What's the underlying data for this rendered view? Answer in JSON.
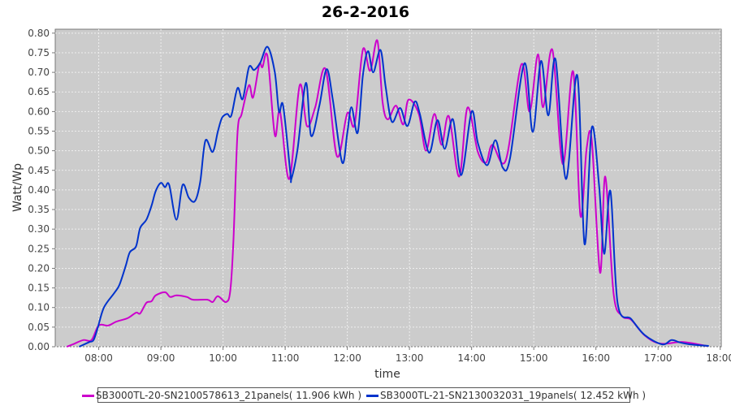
{
  "chart_data": {
    "type": "line",
    "title": "26-2-2016",
    "xlabel": "time",
    "ylabel": "Watt/Wp",
    "xlim": [
      "07:18",
      "18:01"
    ],
    "ylim": [
      0,
      0.81
    ],
    "x_ticks": [
      "08:00",
      "09:00",
      "10:00",
      "11:00",
      "12:00",
      "13:00",
      "14:00",
      "15:00",
      "16:00",
      "17:00",
      "18:00"
    ],
    "y_ticks": [
      "0.00",
      "0.05",
      "0.10",
      "0.15",
      "0.20",
      "0.25",
      "0.30",
      "0.35",
      "0.40",
      "0.45",
      "0.50",
      "0.55",
      "0.60",
      "0.65",
      "0.70",
      "0.75",
      "0.80"
    ],
    "grid": true,
    "legend_position": "bottom",
    "background": "#cccccc",
    "series": [
      {
        "name": "SB3000TL-20-SN2100578613_21panels( 11.906 kWh )",
        "color": "#cc00cc",
        "points": [
          [
            "07:29",
            0
          ],
          [
            "07:35",
            0.006
          ],
          [
            "07:45",
            0.017
          ],
          [
            "07:53",
            0.017
          ],
          [
            "08:00",
            0.054
          ],
          [
            "08:09",
            0.054
          ],
          [
            "08:17",
            0.064
          ],
          [
            "08:28",
            0.073
          ],
          [
            "08:36",
            0.087
          ],
          [
            "08:40",
            0.085
          ],
          [
            "08:46",
            0.112
          ],
          [
            "08:51",
            0.116
          ],
          [
            "08:55",
            0.131
          ],
          [
            "09:04",
            0.139
          ],
          [
            "09:09",
            0.127
          ],
          [
            "09:15",
            0.131
          ],
          [
            "09:25",
            0.127
          ],
          [
            "09:31",
            0.12
          ],
          [
            "09:45",
            0.12
          ],
          [
            "09:50",
            0.114
          ],
          [
            "09:55",
            0.129
          ],
          [
            "10:03",
            0.114
          ],
          [
            "10:07",
            0.143
          ],
          [
            "10:10",
            0.268
          ],
          [
            "10:14",
            0.546
          ],
          [
            "10:18",
            0.594
          ],
          [
            "10:25",
            0.667
          ],
          [
            "10:29",
            0.636
          ],
          [
            "10:35",
            0.72
          ],
          [
            "10:38",
            0.713
          ],
          [
            "10:43",
            0.74
          ],
          [
            "10:50",
            0.54
          ],
          [
            "10:55",
            0.6
          ],
          [
            "11:04",
            0.428
          ],
          [
            "11:14",
            0.667
          ],
          [
            "11:21",
            0.563
          ],
          [
            "11:29",
            0.611
          ],
          [
            "11:39",
            0.708
          ],
          [
            "11:50",
            0.486
          ],
          [
            "12:00",
            0.596
          ],
          [
            "12:07",
            0.567
          ],
          [
            "12:15",
            0.758
          ],
          [
            "12:22",
            0.704
          ],
          [
            "12:29",
            0.781
          ],
          [
            "12:34",
            0.625
          ],
          [
            "12:39",
            0.58
          ],
          [
            "12:47",
            0.615
          ],
          [
            "12:54",
            0.567
          ],
          [
            "12:59",
            0.63
          ],
          [
            "13:09",
            0.594
          ],
          [
            "13:16",
            0.5
          ],
          [
            "13:24",
            0.594
          ],
          [
            "13:31",
            0.515
          ],
          [
            "13:38",
            0.588
          ],
          [
            "13:48",
            0.434
          ],
          [
            "13:56",
            0.61
          ],
          [
            "14:06",
            0.497
          ],
          [
            "14:14",
            0.47
          ],
          [
            "14:20",
            0.515
          ],
          [
            "14:33",
            0.476
          ],
          [
            "14:48",
            0.72
          ],
          [
            "14:56",
            0.6
          ],
          [
            "15:04",
            0.746
          ],
          [
            "15:09",
            0.611
          ],
          [
            "15:18",
            0.757
          ],
          [
            "15:28",
            0.466
          ],
          [
            "15:38",
            0.702
          ],
          [
            "15:45",
            0.335
          ],
          [
            "15:51",
            0.505
          ],
          [
            "15:56",
            0.526
          ],
          [
            "16:04",
            0.189
          ],
          [
            "16:09",
            0.434
          ],
          [
            "16:17",
            0.137
          ],
          [
            "16:25",
            0.079
          ],
          [
            "16:34",
            0.069
          ],
          [
            "16:47",
            0.029
          ],
          [
            "17:02",
            0.008
          ],
          [
            "17:24",
            0.012
          ],
          [
            "17:47",
            0.002
          ]
        ]
      },
      {
        "name": "SB3000TL-21-SN2130032031_19panels( 12.452 kWh )",
        "color": "#0033cc",
        "points": [
          [
            "07:41",
            0
          ],
          [
            "07:51",
            0.012
          ],
          [
            "07:55",
            0.017
          ],
          [
            "07:59",
            0.048
          ],
          [
            "08:05",
            0.1
          ],
          [
            "08:15",
            0.137
          ],
          [
            "08:20",
            0.158
          ],
          [
            "08:26",
            0.206
          ],
          [
            "08:30",
            0.241
          ],
          [
            "08:36",
            0.256
          ],
          [
            "08:40",
            0.303
          ],
          [
            "08:46",
            0.324
          ],
          [
            "08:51",
            0.36
          ],
          [
            "08:55",
            0.397
          ],
          [
            "09:00",
            0.418
          ],
          [
            "09:04",
            0.407
          ],
          [
            "09:08",
            0.413
          ],
          [
            "09:15",
            0.324
          ],
          [
            "09:21",
            0.413
          ],
          [
            "09:27",
            0.38
          ],
          [
            "09:33",
            0.372
          ],
          [
            "09:38",
            0.421
          ],
          [
            "09:43",
            0.526
          ],
          [
            "09:50",
            0.497
          ],
          [
            "09:55",
            0.549
          ],
          [
            "09:59",
            0.584
          ],
          [
            "10:04",
            0.594
          ],
          [
            "10:08",
            0.59
          ],
          [
            "10:14",
            0.66
          ],
          [
            "10:19",
            0.632
          ],
          [
            "10:25",
            0.713
          ],
          [
            "10:30",
            0.706
          ],
          [
            "10:36",
            0.725
          ],
          [
            "10:43",
            0.765
          ],
          [
            "10:50",
            0.7
          ],
          [
            "10:54",
            0.6
          ],
          [
            "10:58",
            0.615
          ],
          [
            "11:05",
            0.443
          ],
          [
            "11:06",
            0.428
          ],
          [
            "11:12",
            0.505
          ],
          [
            "11:20",
            0.673
          ],
          [
            "11:25",
            0.538
          ],
          [
            "11:33",
            0.615
          ],
          [
            "11:40",
            0.708
          ],
          [
            "11:46",
            0.63
          ],
          [
            "11:55",
            0.47
          ],
          [
            "12:00",
            0.546
          ],
          [
            "12:04",
            0.611
          ],
          [
            "12:10",
            0.546
          ],
          [
            "12:15",
            0.692
          ],
          [
            "12:20",
            0.754
          ],
          [
            "12:25",
            0.7
          ],
          [
            "12:32",
            0.757
          ],
          [
            "12:37",
            0.663
          ],
          [
            "12:43",
            0.574
          ],
          [
            "12:51",
            0.609
          ],
          [
            "12:58",
            0.563
          ],
          [
            "13:05",
            0.625
          ],
          [
            "13:10",
            0.594
          ],
          [
            "13:19",
            0.495
          ],
          [
            "13:27",
            0.578
          ],
          [
            "13:34",
            0.505
          ],
          [
            "13:42",
            0.58
          ],
          [
            "13:50",
            0.438
          ],
          [
            "14:00",
            0.6
          ],
          [
            "14:06",
            0.52
          ],
          [
            "14:15",
            0.463
          ],
          [
            "14:23",
            0.527
          ],
          [
            "14:30",
            0.457
          ],
          [
            "14:37",
            0.48
          ],
          [
            "14:51",
            0.723
          ],
          [
            "14:59",
            0.548
          ],
          [
            "15:07",
            0.729
          ],
          [
            "15:14",
            0.59
          ],
          [
            "15:21",
            0.733
          ],
          [
            "15:31",
            0.428
          ],
          [
            "15:42",
            0.692
          ],
          [
            "15:49",
            0.262
          ],
          [
            "15:56",
            0.559
          ],
          [
            "16:03",
            0.413
          ],
          [
            "16:08",
            0.237
          ],
          [
            "16:14",
            0.397
          ],
          [
            "16:21",
            0.11
          ],
          [
            "16:34",
            0.071
          ],
          [
            "16:47",
            0.03
          ],
          [
            "17:04",
            0.006
          ],
          [
            "17:13",
            0.017
          ],
          [
            "17:21",
            0.011
          ],
          [
            "17:31",
            0.006
          ],
          [
            "17:49",
            0.002
          ]
        ]
      }
    ]
  }
}
